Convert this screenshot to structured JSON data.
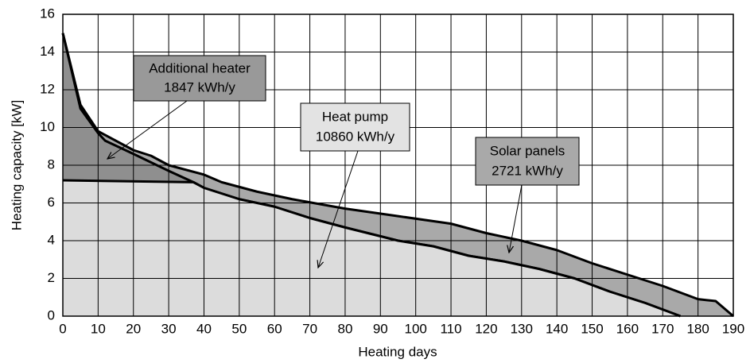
{
  "chart_data": {
    "type": "area",
    "xlabel": "Heating days",
    "ylabel": "Heating capacity [kW]",
    "xlim": [
      0,
      190
    ],
    "ylim": [
      0,
      16
    ],
    "xticks": [
      0,
      10,
      20,
      30,
      40,
      50,
      60,
      70,
      80,
      90,
      100,
      110,
      120,
      130,
      140,
      150,
      160,
      170,
      180,
      190
    ],
    "yticks": [
      0,
      2,
      4,
      6,
      8,
      10,
      12,
      14,
      16
    ],
    "grid": true,
    "series": [
      {
        "name": "Solar panels",
        "annotation": "2721 kWh/y",
        "color": "#a9a9a9",
        "x": [
          0,
          5,
          10,
          20,
          25,
          30,
          40,
          45,
          55,
          65,
          80,
          95,
          110,
          120,
          130,
          140,
          150,
          160,
          170,
          180,
          185,
          190
        ],
        "values": [
          15,
          11.2,
          9.8,
          8.8,
          8.5,
          8.0,
          7.5,
          7.1,
          6.6,
          6.2,
          5.7,
          5.3,
          4.9,
          4.4,
          4.0,
          3.5,
          2.8,
          2.2,
          1.6,
          0.9,
          0.8,
          0
        ]
      },
      {
        "name": "Additional heater",
        "annotation": "1847 kWh/y",
        "color": "#8f8f8f",
        "x": [
          0,
          5,
          10,
          12,
          20,
          30,
          37,
          40,
          50,
          60,
          70,
          80,
          95,
          105,
          115,
          125,
          135,
          145,
          155,
          165,
          175
        ],
        "values": [
          15,
          11,
          9.7,
          9.3,
          8.6,
          7.7,
          7.1,
          6.8,
          6.2,
          5.8,
          5.2,
          4.7,
          4.0,
          3.7,
          3.2,
          2.9,
          2.5,
          2.0,
          1.3,
          0.7,
          0
        ]
      },
      {
        "name": "Heat pump",
        "annotation": "10860 kWh/y",
        "color": "#dcdcdc",
        "x": [
          0,
          37,
          40,
          50,
          60,
          70,
          80,
          95,
          105,
          115,
          125,
          135,
          145,
          155,
          165,
          175
        ],
        "values": [
          7.2,
          7.1,
          6.8,
          6.2,
          5.8,
          5.2,
          4.7,
          4.0,
          3.7,
          3.2,
          2.9,
          2.5,
          2.0,
          1.3,
          0.7,
          0
        ]
      }
    ]
  }
}
